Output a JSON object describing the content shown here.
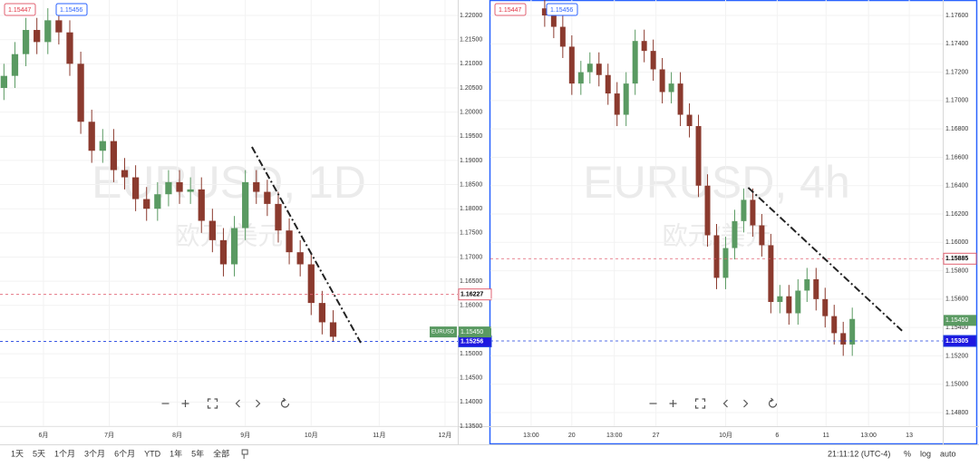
{
  "chart_data": [
    {
      "type": "candlestick",
      "watermark": "EURUSD, 1D",
      "watermark_sub": "欧元/美元",
      "bid": 1.15447,
      "ask": 1.15456,
      "up_color": "#5a9a62",
      "down_color": "#8b3a2e",
      "x": [
        -18,
        -13,
        -8,
        -3,
        2,
        7,
        12,
        17,
        22,
        27,
        32,
        37,
        42,
        47,
        52,
        57,
        62,
        67,
        72,
        77,
        82,
        87,
        92,
        97,
        102,
        107,
        112,
        117,
        122,
        127,
        132
      ],
      "open": [
        1.205,
        1.2075,
        1.212,
        1.217,
        1.2145,
        1.219,
        1.2165,
        1.21,
        1.198,
        1.192,
        1.194,
        1.188,
        1.1865,
        1.182,
        1.18,
        1.183,
        1.1855,
        1.1835,
        1.184,
        1.1775,
        1.1735,
        1.1685,
        1.176,
        1.1855,
        1.1835,
        1.181,
        1.1755,
        1.171,
        1.1685,
        1.1605,
        1.1565
      ],
      "high": [
        1.21,
        1.2145,
        1.2195,
        1.2195,
        1.2215,
        1.2215,
        1.219,
        1.2125,
        1.2005,
        1.1965,
        1.1965,
        1.1905,
        1.189,
        1.1845,
        1.1855,
        1.188,
        1.188,
        1.1865,
        1.1865,
        1.18,
        1.176,
        1.1785,
        1.188,
        1.188,
        1.186,
        1.1835,
        1.178,
        1.1735,
        1.171,
        1.163,
        1.159
      ],
      "low": [
        1.2025,
        1.205,
        1.2095,
        1.212,
        1.212,
        1.214,
        1.2075,
        1.1955,
        1.1895,
        1.1895,
        1.1855,
        1.184,
        1.1795,
        1.1775,
        1.1775,
        1.1805,
        1.181,
        1.181,
        1.175,
        1.171,
        1.166,
        1.166,
        1.1735,
        1.181,
        1.1785,
        1.173,
        1.1685,
        1.166,
        1.158,
        1.154,
        1.1525
      ],
      "close": [
        1.2075,
        1.212,
        1.217,
        1.2145,
        1.219,
        1.2165,
        1.21,
        1.198,
        1.192,
        1.194,
        1.188,
        1.1865,
        1.182,
        1.18,
        1.183,
        1.1855,
        1.1835,
        1.184,
        1.1775,
        1.1735,
        1.1685,
        1.176,
        1.1855,
        1.1835,
        1.181,
        1.1755,
        1.171,
        1.1685,
        1.1605,
        1.1565,
        1.1535
      ],
      "xlim": [
        -19.8,
        188.8
      ],
      "xticks": [
        {
          "value": 0,
          "label": "6月"
        },
        {
          "value": 30,
          "label": "7月"
        },
        {
          "value": 61,
          "label": "8月"
        },
        {
          "value": 92,
          "label": "9月"
        },
        {
          "value": 122,
          "label": "10月"
        },
        {
          "value": 153,
          "label": "11月"
        },
        {
          "value": 183,
          "label": "12月"
        }
      ],
      "ylim": [
        1.135,
        1.2232
      ],
      "yticks": [
        {
          "value": 1.135,
          "label": "1.13500"
        },
        {
          "value": 1.14,
          "label": "1.14000"
        },
        {
          "value": 1.145,
          "label": "1.14500"
        },
        {
          "value": 1.15,
          "label": "1.15000"
        },
        {
          "value": 1.155,
          "label": "1.15500"
        },
        {
          "value": 1.16,
          "label": "1.16000"
        },
        {
          "value": 1.165,
          "label": "1.16500"
        },
        {
          "value": 1.17,
          "label": "1.17000"
        },
        {
          "value": 1.175,
          "label": "1.17500"
        },
        {
          "value": 1.18,
          "label": "1.18000"
        },
        {
          "value": 1.185,
          "label": "1.18500"
        },
        {
          "value": 1.19,
          "label": "1.19000"
        },
        {
          "value": 1.195,
          "label": "1.19500"
        },
        {
          "value": 1.2,
          "label": "1.20000"
        },
        {
          "value": 1.205,
          "label": "1.20500"
        },
        {
          "value": 1.21,
          "label": "1.21000"
        },
        {
          "value": 1.215,
          "label": "1.21500"
        },
        {
          "value": 1.22,
          "label": "1.22000"
        }
      ],
      "levels": [
        {
          "value": 1.16227,
          "color": "#e06070"
        },
        {
          "value": 1.15256,
          "color": "#1e40e0"
        }
      ],
      "last_price": {
        "value": 1.1545,
        "label": "1.15450",
        "symbol": "EURUSD"
      },
      "trendline": {
        "x": [
          95,
          144.6
        ],
        "y": [
          1.1928,
          1.15227
        ]
      }
    },
    {
      "type": "candlestick",
      "watermark": "EURUSD, 4h",
      "watermark_sub": "欧元/美元",
      "bid": 1.15447,
      "ask": 1.15456,
      "up_color": "#5a9a62",
      "down_color": "#8b3a2e",
      "x": [
        6,
        7,
        8,
        9,
        10,
        11,
        12,
        13,
        14,
        15,
        16,
        17,
        18,
        19,
        20,
        21,
        22,
        23,
        24,
        25,
        26,
        27,
        28,
        29,
        30,
        31,
        32,
        33,
        34,
        35,
        36,
        37,
        38,
        39,
        40
      ],
      "open": [
        1.1765,
        1.176,
        1.1752,
        1.1738,
        1.1712,
        1.172,
        1.1726,
        1.1718,
        1.1705,
        1.169,
        1.1712,
        1.1742,
        1.1735,
        1.1722,
        1.1706,
        1.1712,
        1.169,
        1.1682,
        1.164,
        1.1605,
        1.1575,
        1.1596,
        1.1615,
        1.163,
        1.1612,
        1.1598,
        1.1558,
        1.1562,
        1.155,
        1.1566,
        1.1574,
        1.156,
        1.1548,
        1.1536,
        1.1528
      ],
      "high": [
        1.1773,
        1.1768,
        1.176,
        1.1746,
        1.1728,
        1.1734,
        1.1734,
        1.1726,
        1.1713,
        1.172,
        1.175,
        1.175,
        1.1743,
        1.173,
        1.172,
        1.172,
        1.1698,
        1.169,
        1.1648,
        1.1613,
        1.1604,
        1.1623,
        1.1638,
        1.1638,
        1.162,
        1.1606,
        1.157,
        1.157,
        1.1574,
        1.1582,
        1.1582,
        1.1568,
        1.1556,
        1.1544,
        1.1554
      ],
      "low": [
        1.1752,
        1.1744,
        1.173,
        1.1704,
        1.1704,
        1.1712,
        1.171,
        1.1697,
        1.1682,
        1.1682,
        1.1704,
        1.1727,
        1.1714,
        1.1698,
        1.1698,
        1.1682,
        1.1674,
        1.1632,
        1.1597,
        1.1567,
        1.1567,
        1.1588,
        1.1607,
        1.1604,
        1.159,
        1.155,
        1.155,
        1.1542,
        1.1542,
        1.1558,
        1.1552,
        1.154,
        1.1528,
        1.152,
        1.152
      ],
      "close": [
        1.176,
        1.1752,
        1.1738,
        1.1712,
        1.172,
        1.1726,
        1.1718,
        1.1705,
        1.169,
        1.1712,
        1.1742,
        1.1735,
        1.1722,
        1.1706,
        1.1712,
        1.169,
        1.1682,
        1.164,
        1.1605,
        1.1575,
        1.1596,
        1.1615,
        1.163,
        1.1612,
        1.1598,
        1.1558,
        1.1562,
        1.155,
        1.1566,
        1.1574,
        1.156,
        1.1548,
        1.1536,
        1.1528,
        1.1546
      ],
      "xlim": [
        0,
        50
      ],
      "xticks": [
        {
          "value": 4.5,
          "label": "13:00"
        },
        {
          "value": 9,
          "label": "20"
        },
        {
          "value": 13.7,
          "label": "13:00"
        },
        {
          "value": 18.3,
          "label": "27"
        },
        {
          "value": 26,
          "label": "10月"
        },
        {
          "value": 31.7,
          "label": "6"
        },
        {
          "value": 37.1,
          "label": "11"
        },
        {
          "value": 41.8,
          "label": "13:00"
        },
        {
          "value": 46.3,
          "label": "13"
        }
      ],
      "ylim": [
        1.14704,
        1.17709
      ],
      "yticks": [
        {
          "value": 1.148,
          "label": "1.14800"
        },
        {
          "value": 1.15,
          "label": "1.15000"
        },
        {
          "value": 1.152,
          "label": "1.15200"
        },
        {
          "value": 1.154,
          "label": "1.15400"
        },
        {
          "value": 1.156,
          "label": "1.15600"
        },
        {
          "value": 1.158,
          "label": "1.15800"
        },
        {
          "value": 1.16,
          "label": "1.16000"
        },
        {
          "value": 1.162,
          "label": "1.16200"
        },
        {
          "value": 1.164,
          "label": "1.16400"
        },
        {
          "value": 1.166,
          "label": "1.16600"
        },
        {
          "value": 1.168,
          "label": "1.16800"
        },
        {
          "value": 1.17,
          "label": "1.17000"
        },
        {
          "value": 1.172,
          "label": "1.17200"
        },
        {
          "value": 1.174,
          "label": "1.17400"
        },
        {
          "value": 1.176,
          "label": "1.17600"
        }
      ],
      "levels": [
        {
          "value": 1.15885,
          "color": "#e06070"
        },
        {
          "value": 1.15305,
          "color": "#1e40e0"
        }
      ],
      "last_price": {
        "value": 1.1545,
        "label": "1.15450"
      },
      "trendline": {
        "x": [
          28.5,
          45.5
        ],
        "y": [
          1.16386,
          1.15377
        ]
      }
    }
  ],
  "toolbar": {
    "ranges": [
      "1天",
      "5天",
      "1个月",
      "3个月",
      "6个月",
      "YTD",
      "1年",
      "5年",
      "全部"
    ],
    "time": "21:11:12 (UTC-4)",
    "options": [
      "%",
      "log",
      "auto"
    ]
  }
}
